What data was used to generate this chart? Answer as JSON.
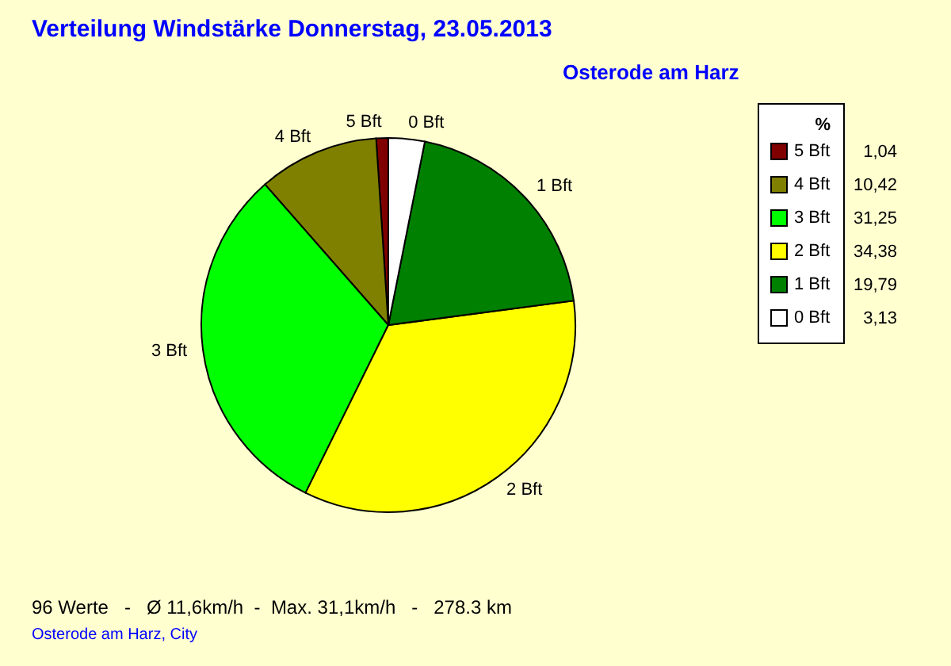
{
  "chart_data": {
    "type": "pie",
    "title": "Verteilung Windstärke  Donnerstag, 23.05.2013",
    "subtitle": "Osterode am Harz",
    "legend_title": "%",
    "legend": "right",
    "categories": [
      "5 Bft",
      "4 Bft",
      "3 Bft",
      "2 Bft",
      "1 Bft",
      "0 Bft"
    ],
    "values": [
      1.04,
      10.42,
      31.25,
      34.38,
      19.79,
      3.13
    ],
    "value_labels": [
      "1,04",
      "10,42",
      "31,25",
      "34,38",
      "19,79",
      "3,13"
    ],
    "colors": [
      "#800000",
      "#808000",
      "#00ff00",
      "#ffff00",
      "#008000",
      "#ffffff"
    ],
    "annotations": [
      "96 Werte   -   Ø 11,6km/h  -  Max. 31,1km/h   -   278.3 km",
      "Osterode am Harz, City"
    ]
  }
}
